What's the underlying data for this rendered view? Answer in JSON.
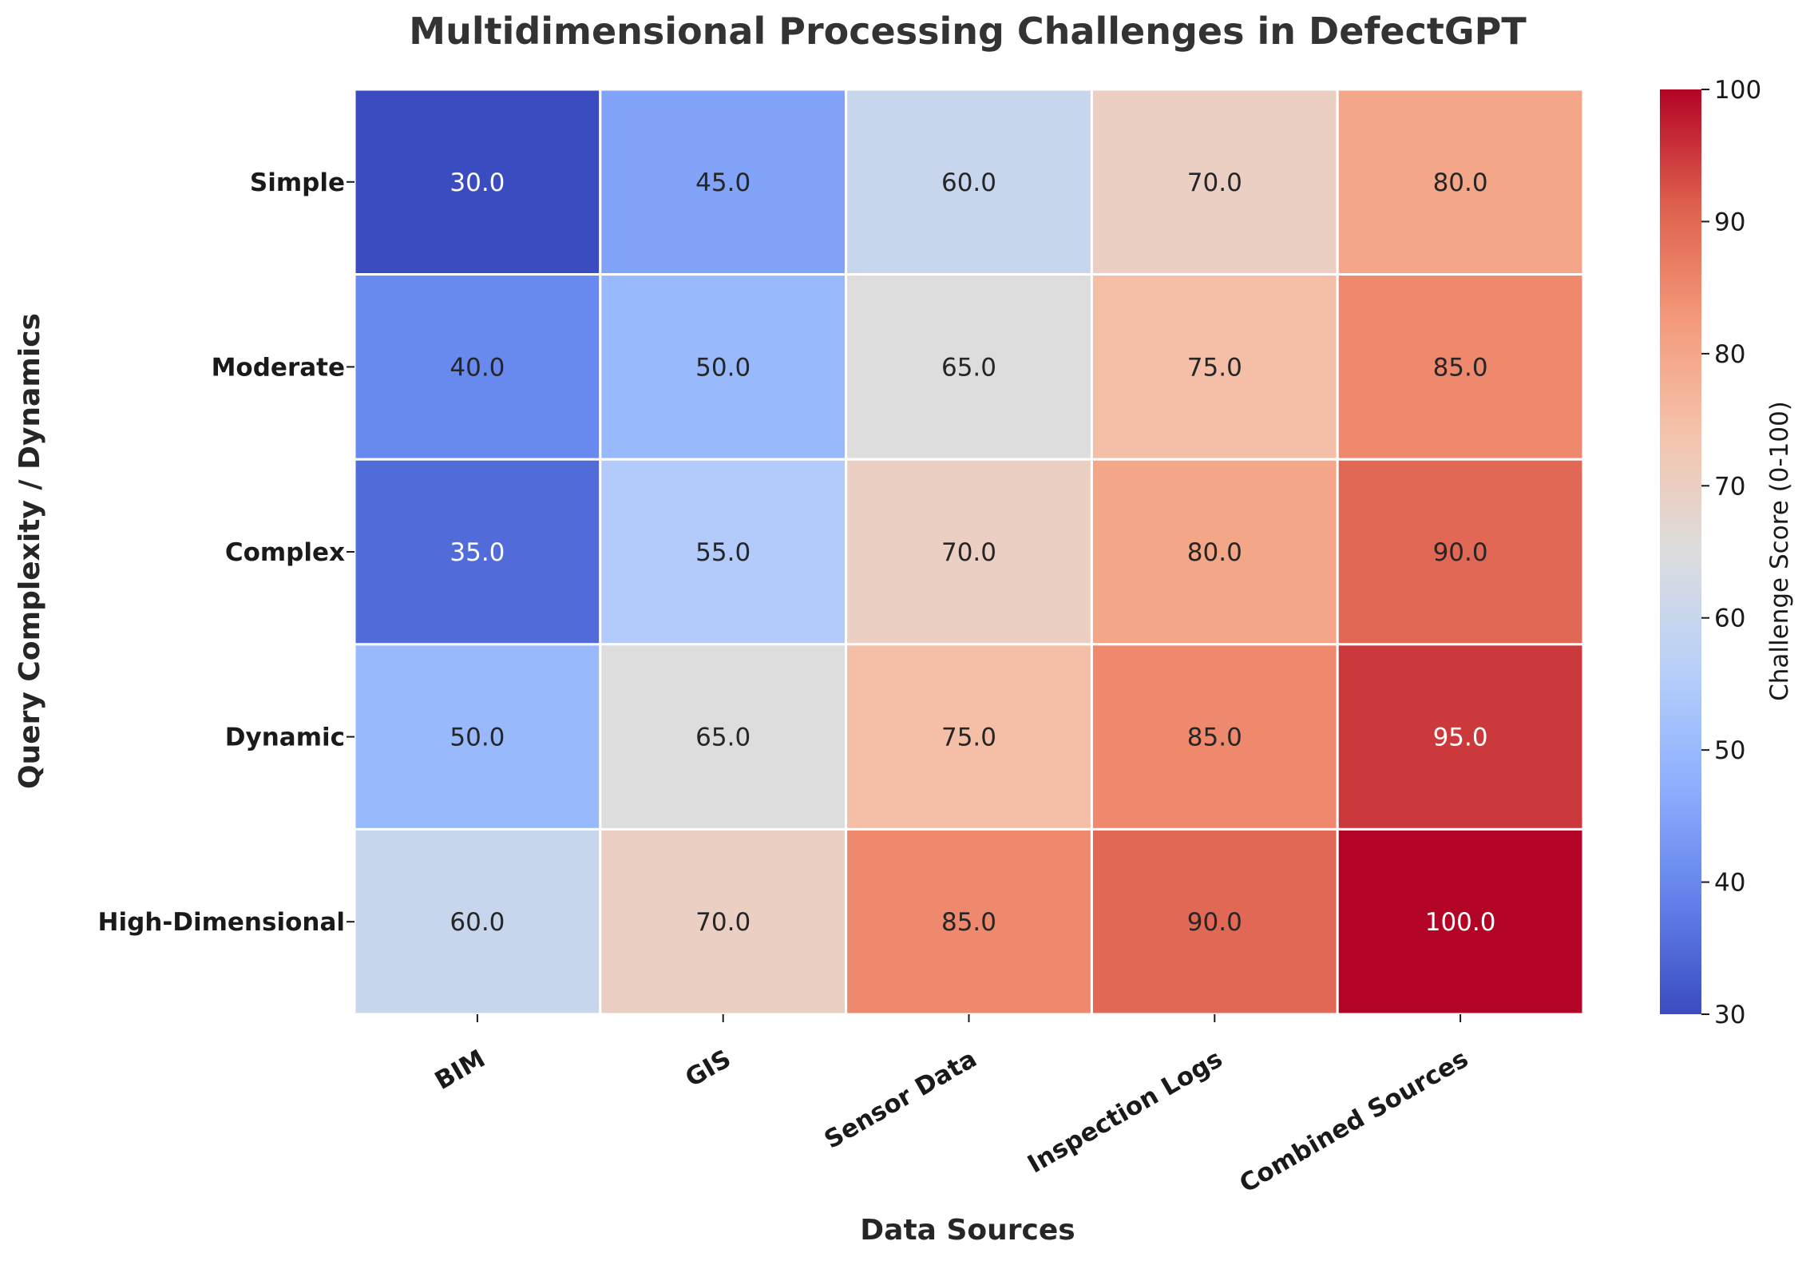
{
  "chart_data": {
    "type": "heatmap",
    "title": "Multidimensional Processing Challenges in DefectGPT",
    "xlabel": "Data Sources",
    "ylabel": "Query Complexity / Dynamics",
    "x_categories": [
      "BIM",
      "GIS",
      "Sensor Data",
      "Inspection Logs",
      "Combined Sources"
    ],
    "y_categories": [
      "Simple",
      "Moderate",
      "Complex",
      "Dynamic",
      "High-Dimensional"
    ],
    "values": [
      [
        30.0,
        45.0,
        60.0,
        70.0,
        80.0
      ],
      [
        40.0,
        50.0,
        65.0,
        75.0,
        85.0
      ],
      [
        35.0,
        55.0,
        70.0,
        80.0,
        90.0
      ],
      [
        50.0,
        65.0,
        75.0,
        85.0,
        95.0
      ],
      [
        60.0,
        70.0,
        85.0,
        90.0,
        100.0
      ]
    ],
    "value_labels": [
      [
        "30.0",
        "45.0",
        "60.0",
        "70.0",
        "80.0"
      ],
      [
        "40.0",
        "50.0",
        "65.0",
        "75.0",
        "85.0"
      ],
      [
        "35.0",
        "55.0",
        "70.0",
        "80.0",
        "90.0"
      ],
      [
        "50.0",
        "65.0",
        "75.0",
        "85.0",
        "95.0"
      ],
      [
        "60.0",
        "70.0",
        "85.0",
        "90.0",
        "100.0"
      ]
    ],
    "colormap": "coolwarm",
    "vmin": 30,
    "vmax": 100,
    "colorbar": {
      "label": "Challenge Score (0-100)",
      "ticks": [
        30,
        40,
        50,
        60,
        70,
        80,
        90,
        100
      ],
      "tick_labels": [
        "30",
        "40",
        "50",
        "60",
        "70",
        "80",
        "90",
        "100"
      ]
    },
    "grid": false,
    "cell_border_color": "#ffffff"
  }
}
